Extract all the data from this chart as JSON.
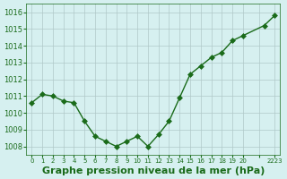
{
  "x": [
    0,
    1,
    2,
    3,
    4,
    5,
    6,
    7,
    8,
    9,
    10,
    11,
    12,
    13,
    14,
    15,
    16,
    17,
    18,
    19,
    20,
    22,
    23
  ],
  "y": [
    1010.6,
    1011.1,
    1011.0,
    1010.7,
    1010.6,
    1009.5,
    1008.6,
    1008.3,
    1008.0,
    1008.3,
    1008.6,
    1008.0,
    1008.7,
    1009.5,
    1010.9,
    1012.3,
    1012.8,
    1013.3,
    1013.6,
    1014.3,
    1014.6,
    1015.2,
    1015.8
  ],
  "line_color": "#1a6b1a",
  "marker_color": "#1a6b1a",
  "bg_color": "#d6f0f0",
  "grid_color": "#b0c8c8",
  "xlabel": "Graphe pression niveau de la mer (hPa)",
  "xlabel_color": "#1a6b1a",
  "tick_color": "#1a6b1a",
  "ylim": [
    1007.5,
    1016.5
  ],
  "yticks": [
    1008,
    1009,
    1010,
    1011,
    1012,
    1013,
    1014,
    1015,
    1016
  ],
  "xtick_positions": [
    0,
    1,
    2,
    3,
    4,
    5,
    6,
    7,
    8,
    9,
    10,
    11,
    12,
    13,
    14,
    15,
    16,
    17,
    18,
    19,
    20,
    21.5,
    23
  ],
  "xtick_labels": [
    "0",
    "1",
    "2",
    "3",
    "4",
    "5",
    "6",
    "7",
    "8",
    "9",
    "10",
    "11",
    "12",
    "13",
    "14",
    "15",
    "16",
    "17",
    "18",
    "19",
    "20",
    "",
    "2223"
  ],
  "label_fontsize": 8
}
